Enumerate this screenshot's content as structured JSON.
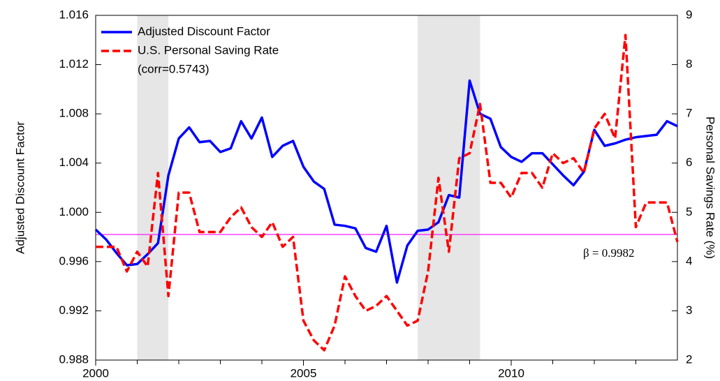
{
  "chart_data": {
    "type": "line",
    "ylabel": "Adjusted Discount Factor",
    "y2label": "Personal Savings Rate (%)",
    "annotation": "(corr=0.5743)",
    "legend": "upper left",
    "x": [
      2000,
      2000.25,
      2000.5,
      2000.75,
      2001,
      2001.25,
      2001.5,
      2001.75,
      2002,
      2002.25,
      2002.5,
      2002.75,
      2003,
      2003.25,
      2003.5,
      2003.75,
      2004,
      2004.25,
      2004.5,
      2004.75,
      2005,
      2005.25,
      2005.5,
      2005.75,
      2006,
      2006.25,
      2006.5,
      2006.75,
      2007,
      2007.25,
      2007.5,
      2007.75,
      2008,
      2008.25,
      2008.5,
      2008.75,
      2009,
      2009.25,
      2009.5,
      2009.75,
      2010,
      2010.25,
      2010.5,
      2010.75,
      2011,
      2011.25,
      2011.5,
      2011.75,
      2012,
      2012.25,
      2012.5,
      2012.75,
      2013,
      2013.25,
      2013.5,
      2013.75,
      2014
    ],
    "series": [
      {
        "name": "Adjusted Discount Factor",
        "color": "#0000ff",
        "axis": "y",
        "dashed": false,
        "values": [
          0.9986,
          0.9978,
          0.9967,
          0.9957,
          0.9958,
          0.9966,
          0.9975,
          1.003,
          1.006,
          1.0069,
          1.0057,
          1.0058,
          1.0049,
          1.0052,
          1.0074,
          1.006,
          1.0077,
          1.0045,
          1.0054,
          1.0058,
          1.0037,
          1.0025,
          1.0019,
          0.999,
          0.9989,
          0.9987,
          0.9971,
          0.9968,
          0.9989,
          0.9943,
          0.9973,
          0.9985,
          0.9986,
          0.9992,
          1.0014,
          1.0012,
          1.0107,
          1.008,
          1.0076,
          1.0053,
          1.0045,
          1.0041,
          1.0048,
          1.0048,
          1.0039,
          1.003,
          1.0022,
          1.0033,
          1.0067,
          1.0054,
          1.0056,
          1.0059,
          1.0061,
          1.0062,
          1.0063,
          1.0074,
          1.007
        ]
      },
      {
        "name": "U.S. Personal Saving Rate",
        "color": "#ff0000",
        "axis": "y2",
        "dashed": true,
        "values": [
          4.3,
          4.3,
          4.3,
          3.8,
          4.2,
          3.9,
          5.8,
          3.3,
          5.4,
          5.4,
          4.6,
          4.6,
          4.6,
          4.9,
          5.1,
          4.7,
          4.5,
          4.8,
          4.3,
          4.5,
          2.8,
          2.4,
          2.2,
          2.7,
          3.7,
          3.3,
          3.0,
          3.1,
          3.3,
          3.0,
          2.7,
          2.8,
          3.8,
          5.7,
          4.2,
          6.1,
          6.2,
          7.2,
          5.6,
          5.6,
          5.3,
          5.8,
          5.8,
          5.5,
          6.2,
          6.0,
          6.1,
          5.8,
          6.7,
          7.0,
          6.5,
          8.6,
          4.7,
          5.2,
          5.2,
          5.2,
          4.4
        ]
      }
    ],
    "hline": {
      "value": 0.9982,
      "label": "β = 0.9982",
      "color": "#ff00ff"
    },
    "shaded_regions": [
      [
        2001,
        2001.75
      ],
      [
        2007.75,
        2009.25
      ]
    ],
    "shade_color": "#e6e6e6",
    "xlim": [
      2000,
      2014
    ],
    "xticks": [
      2000,
      2005,
      2010
    ],
    "xminor_ticks": [
      2001,
      2002,
      2003,
      2004,
      2006,
      2007,
      2008,
      2009,
      2011,
      2012,
      2013
    ],
    "ylim": [
      0.988,
      1.016
    ],
    "yticks": [
      0.988,
      0.992,
      0.996,
      {
        "value": 1,
        "label": "1.000"
      },
      1.004,
      1.008,
      1.012,
      1.016
    ],
    "y2lim": [
      2,
      9
    ],
    "y2ticks": [
      2,
      3,
      4,
      5,
      6,
      7,
      8,
      9
    ]
  }
}
